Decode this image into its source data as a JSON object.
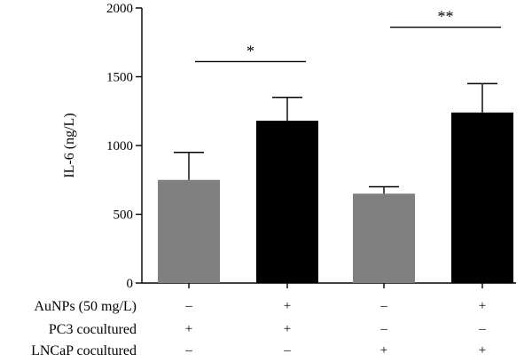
{
  "colors": {
    "gray_bar": "#808080",
    "black_bar": "#000000",
    "axis": "#000000"
  },
  "chart_data": {
    "type": "bar",
    "title": "",
    "xlabel": "",
    "ylabel": "IL-6 (ng/L)",
    "ylim": [
      0,
      2000
    ],
    "y_ticks": [
      0,
      500,
      1000,
      1500,
      2000
    ],
    "bars": [
      {
        "value": 750,
        "error": 200,
        "color": "gray"
      },
      {
        "value": 1180,
        "error": 170,
        "color": "black"
      },
      {
        "value": 650,
        "error": 50,
        "color": "gray"
      },
      {
        "value": 1240,
        "error": 210,
        "color": "black"
      }
    ],
    "condition_rows": [
      {
        "label": "AuNPs (50 mg/L)",
        "signs": [
          "–",
          "+",
          "–",
          "+"
        ]
      },
      {
        "label": "PC3 cocultured",
        "signs": [
          "+",
          "+",
          "–",
          "–"
        ]
      },
      {
        "label": "LNCaP cocultured",
        "signs": [
          "–",
          "–",
          "+",
          "+"
        ]
      }
    ],
    "significance": [
      {
        "from": 0,
        "to": 1,
        "label": "*",
        "y": 1610
      },
      {
        "from": 2,
        "to": 3,
        "label": "**",
        "y": 1860
      }
    ]
  }
}
